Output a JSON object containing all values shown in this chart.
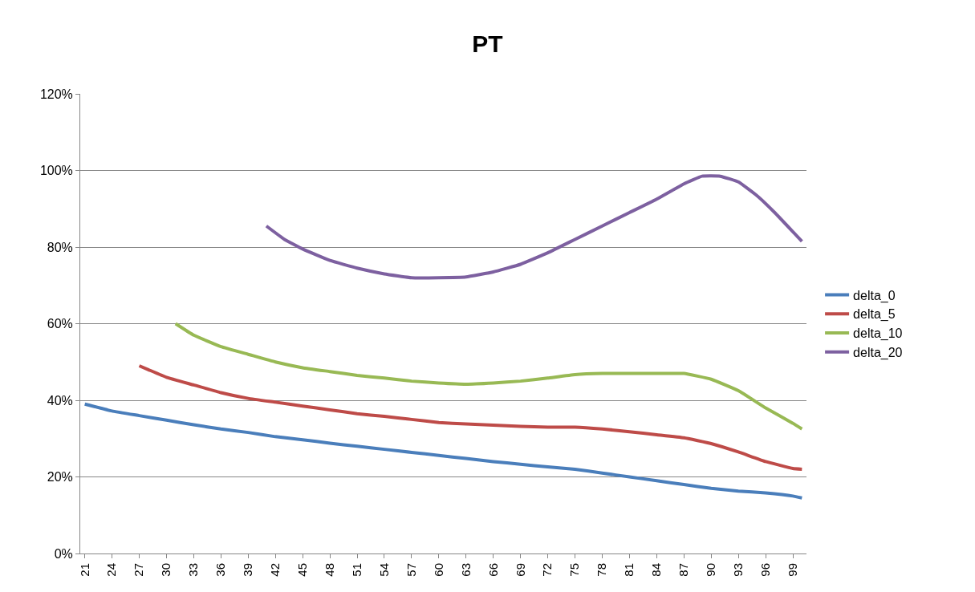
{
  "chart_data": {
    "type": "line",
    "title": "PT",
    "xlim": [
      20.5,
      100.5
    ],
    "xticks": [
      21,
      24,
      27,
      30,
      33,
      36,
      39,
      42,
      45,
      48,
      51,
      54,
      57,
      60,
      63,
      66,
      69,
      72,
      75,
      78,
      81,
      84,
      87,
      90,
      93,
      96,
      99
    ],
    "ylim": [
      0,
      120
    ],
    "yticks": [
      {
        "value": 0,
        "label": "0%"
      },
      {
        "value": 20,
        "label": "20%"
      },
      {
        "value": 40,
        "label": "40%"
      },
      {
        "value": 60,
        "label": "60%"
      },
      {
        "value": 80,
        "label": "80%"
      },
      {
        "value": 100,
        "label": "100%"
      },
      {
        "value": 120,
        "label": "120%"
      }
    ],
    "grid": "y",
    "legend": "right",
    "marker": "none",
    "line_style": "solid",
    "series": [
      {
        "name": "delta_0",
        "color": "#4a7ebb",
        "x": [
          21,
          24,
          27,
          30,
          33,
          36,
          39,
          42,
          45,
          48,
          51,
          54,
          57,
          60,
          63,
          66,
          69,
          72,
          75,
          78,
          81,
          84,
          87,
          90,
          93,
          96,
          99,
          100
        ],
        "values": [
          39,
          37.2,
          36,
          34.8,
          33.6,
          32.5,
          31.6,
          30.5,
          29.7,
          28.8,
          28,
          27.2,
          26.4,
          25.6,
          24.8,
          24,
          23.3,
          22.6,
          22,
          21,
          20,
          19,
          18,
          17,
          16.3,
          15.8,
          15,
          14.5
        ]
      },
      {
        "name": "delta_5",
        "color": "#be4b48",
        "x": [
          27,
          28,
          30,
          33,
          36,
          39,
          42,
          45,
          48,
          51,
          54,
          57,
          60,
          63,
          66,
          69,
          72,
          75,
          78,
          81,
          84,
          87,
          90,
          93,
          96,
          99,
          100
        ],
        "values": [
          49,
          48,
          46,
          44,
          42,
          40.5,
          39.5,
          38.5,
          37.5,
          36.5,
          35.8,
          35,
          34.2,
          33.8,
          33.5,
          33.2,
          33,
          33,
          32.5,
          31.8,
          31,
          30.2,
          28.7,
          26.5,
          24,
          22.2,
          22
        ]
      },
      {
        "name": "delta_10",
        "color": "#98b954",
        "x": [
          31,
          33,
          36,
          39,
          42,
          45,
          48,
          51,
          54,
          57,
          60,
          63,
          66,
          69,
          72,
          75,
          78,
          81,
          84,
          87,
          90,
          93,
          96,
          99,
          100
        ],
        "values": [
          60,
          57,
          54,
          52,
          50,
          48.5,
          47.5,
          46.5,
          45.8,
          45,
          44.5,
          44.2,
          44.5,
          45,
          45.8,
          46.7,
          47,
          47,
          47,
          47,
          45.5,
          42.5,
          38,
          34,
          32.5
        ]
      },
      {
        "name": "delta_20",
        "color": "#7d60a0",
        "x": [
          41,
          43,
          45,
          48,
          51,
          54,
          57,
          60,
          63,
          66,
          69,
          72,
          75,
          78,
          81,
          84,
          87,
          89,
          91,
          93,
          95,
          97,
          99,
          100
        ],
        "values": [
          85.5,
          82,
          79.5,
          76.5,
          74.5,
          73,
          72,
          72,
          72.2,
          73.5,
          75.5,
          78.5,
          82,
          85.5,
          89,
          92.5,
          96.5,
          98.5,
          98.5,
          97,
          93.5,
          89,
          84,
          81.5
        ]
      }
    ]
  }
}
